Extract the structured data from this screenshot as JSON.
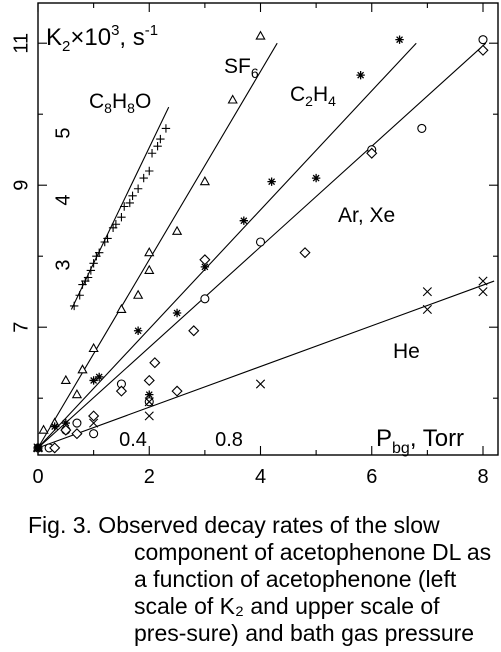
{
  "chart_data": {
    "type": "scatter",
    "ylabel": "K2×10³, s⁻¹",
    "xlabel": "Pbg, Torr",
    "xlim": [
      0,
      8.3
    ],
    "ylim": [
      5.2,
      11.5
    ],
    "x_ticks": [
      "0",
      "2",
      "4",
      "6",
      "8"
    ],
    "y_ticks": [
      "7",
      "9",
      "11"
    ],
    "upper_x_ticks": [
      "0.4",
      "0.8"
    ],
    "inner_y_ticks": [
      "3",
      "4",
      "5"
    ],
    "series": [
      {
        "name": "C8H8O",
        "marker": "+",
        "points": [
          [
            0.65,
            7.3
          ],
          [
            0.75,
            7.45
          ],
          [
            0.8,
            7.6
          ],
          [
            0.85,
            7.65
          ],
          [
            0.9,
            7.7
          ],
          [
            0.95,
            7.8
          ],
          [
            1.0,
            7.9
          ],
          [
            1.05,
            8.0
          ],
          [
            1.1,
            8.05
          ],
          [
            1.2,
            8.2
          ],
          [
            1.25,
            8.25
          ],
          [
            1.35,
            8.4
          ],
          [
            1.4,
            8.45
          ],
          [
            1.5,
            8.55
          ],
          [
            1.55,
            8.7
          ],
          [
            1.65,
            8.75
          ],
          [
            1.7,
            8.85
          ],
          [
            1.8,
            8.95
          ],
          [
            1.9,
            9.1
          ],
          [
            2.0,
            9.2
          ],
          [
            2.05,
            9.45
          ],
          [
            2.15,
            9.55
          ],
          [
            2.2,
            9.65
          ],
          [
            2.3,
            9.8
          ]
        ],
        "fit": [
          [
            0.6,
            7.25
          ],
          [
            2.35,
            10.1
          ]
        ]
      },
      {
        "name": "SF6",
        "marker": "triangle",
        "points": [
          [
            0.0,
            5.3
          ],
          [
            0.1,
            5.55
          ],
          [
            0.3,
            5.65
          ],
          [
            0.5,
            6.25
          ],
          [
            0.7,
            6.05
          ],
          [
            0.8,
            6.4
          ],
          [
            1.0,
            6.7
          ],
          [
            1.5,
            7.25
          ],
          [
            1.8,
            7.45
          ],
          [
            2.0,
            7.8
          ],
          [
            2.0,
            8.05
          ],
          [
            2.5,
            8.35
          ],
          [
            3.0,
            9.05
          ],
          [
            3.5,
            10.2
          ],
          [
            4.0,
            11.1
          ]
        ],
        "fit": [
          [
            0.0,
            5.3
          ],
          [
            4.3,
            11.0
          ]
        ]
      },
      {
        "name": "C2H4",
        "marker": "asterisk",
        "points": [
          [
            0.0,
            5.3
          ],
          [
            0.3,
            5.6
          ],
          [
            0.5,
            5.65
          ],
          [
            1.0,
            6.25
          ],
          [
            1.1,
            6.3
          ],
          [
            1.8,
            6.95
          ],
          [
            2.0,
            6.05
          ],
          [
            2.5,
            7.2
          ],
          [
            3.0,
            7.85
          ],
          [
            3.7,
            8.5
          ],
          [
            4.2,
            9.05
          ],
          [
            5.0,
            9.1
          ],
          [
            5.8,
            10.55
          ],
          [
            6.5,
            11.05
          ]
        ],
        "fit": [
          [
            0.0,
            5.3
          ],
          [
            6.8,
            11.0
          ]
        ]
      },
      {
        "name": "Ar, Xe",
        "marker": "circle",
        "points": [
          [
            0.0,
            5.3
          ],
          [
            0.2,
            5.3
          ],
          [
            0.5,
            5.55
          ],
          [
            0.7,
            5.65
          ],
          [
            1.0,
            5.5
          ],
          [
            1.5,
            6.2
          ],
          [
            2.0,
            5.95
          ],
          [
            3.0,
            7.4
          ],
          [
            4.0,
            8.2
          ],
          [
            6.0,
            9.5
          ],
          [
            6.9,
            9.8
          ],
          [
            8.0,
            11.05
          ]
        ],
        "marker2": "diamond",
        "points2": [
          [
            0.3,
            5.3
          ],
          [
            0.5,
            5.55
          ],
          [
            0.7,
            5.5
          ],
          [
            1.0,
            5.75
          ],
          [
            1.5,
            6.1
          ],
          [
            2.0,
            6.25
          ],
          [
            2.1,
            6.5
          ],
          [
            2.5,
            6.1
          ],
          [
            2.8,
            6.95
          ],
          [
            3.0,
            7.95
          ],
          [
            4.8,
            8.05
          ],
          [
            6.0,
            9.45
          ],
          [
            8.0,
            10.9
          ]
        ],
        "fit": [
          [
            0.0,
            5.3
          ],
          [
            8.05,
            11.0
          ]
        ]
      },
      {
        "name": "He",
        "marker": "x",
        "points": [
          [
            0.0,
            5.3
          ],
          [
            1.0,
            5.65
          ],
          [
            2.0,
            5.75
          ],
          [
            2.0,
            5.95
          ],
          [
            4.0,
            6.2
          ],
          [
            7.0,
            7.25
          ],
          [
            7.0,
            7.5
          ],
          [
            8.0,
            7.5
          ],
          [
            8.0,
            7.65
          ]
        ],
        "fit": [
          [
            0.0,
            5.3
          ],
          [
            8.2,
            7.65
          ]
        ]
      }
    ]
  },
  "caption": {
    "line1": "Fig. 3. Observed decay rates of the slow",
    "rest": "component of acetophenone DL as a function of acetophenone (left scale of K₂ and upper scale of pres-sure) and bath gas pressure"
  }
}
